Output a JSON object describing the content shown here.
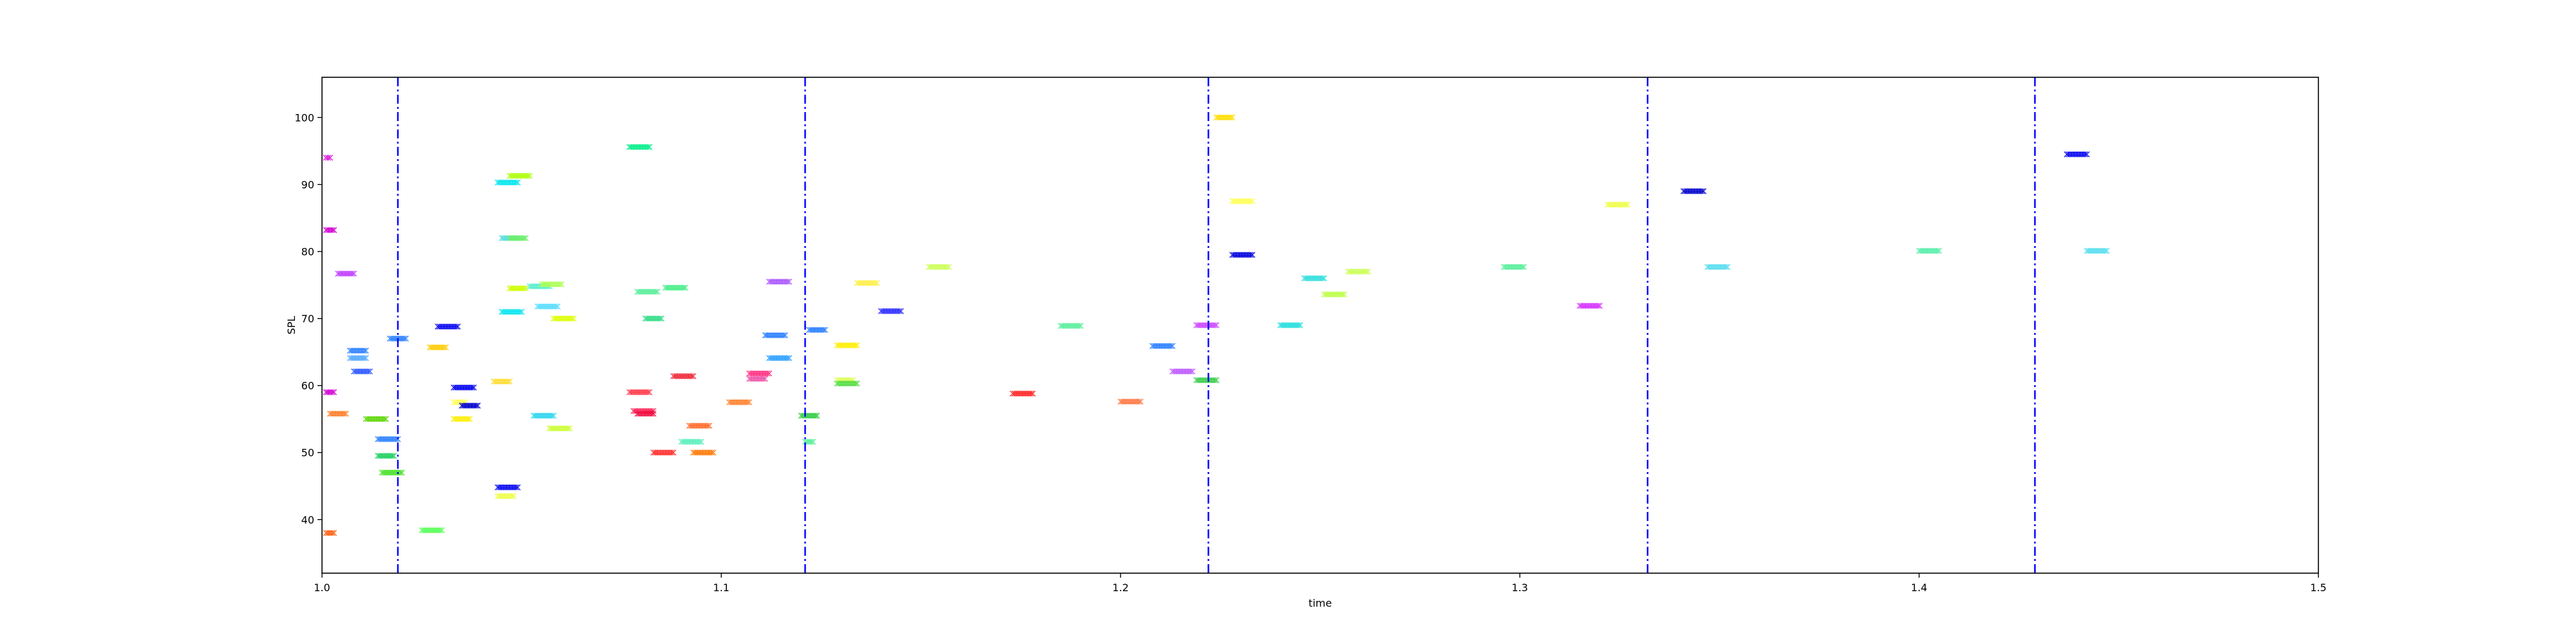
{
  "chart_data": {
    "type": "scatter",
    "xlabel": "time",
    "ylabel": "SPL",
    "xlim": [
      1.0,
      1.5
    ],
    "ylim": [
      32,
      106
    ],
    "xticks": [
      "1.0",
      "1.1",
      "1.2",
      "1.3",
      "1.4",
      "1.5"
    ],
    "yticks": [
      "40",
      "50",
      "60",
      "70",
      "80",
      "90",
      "100"
    ],
    "grid": false,
    "marker": "x",
    "vlines": {
      "x": [
        1.019,
        1.121,
        1.222,
        1.332,
        1.429
      ],
      "color": "#0000ff",
      "style": "dash-dot"
    },
    "points": [
      {
        "x": 1.001,
        "y": 94.0,
        "w": 0.001,
        "color": "#d400d4"
      },
      {
        "x": 1.001,
        "y": 83.2,
        "w": 0.002,
        "color": "#d400d4"
      },
      {
        "x": 1.004,
        "y": 76.7,
        "w": 0.004,
        "color": "#c040ff"
      },
      {
        "x": 1.001,
        "y": 59.0,
        "w": 0.002,
        "color": "#d400d4"
      },
      {
        "x": 1.002,
        "y": 55.8,
        "w": 0.004,
        "color": "#ff7f2a"
      },
      {
        "x": 1.001,
        "y": 38.0,
        "w": 0.002,
        "color": "#ff6010"
      },
      {
        "x": 1.007,
        "y": 65.2,
        "w": 0.004,
        "color": "#2a7fff"
      },
      {
        "x": 1.007,
        "y": 64.1,
        "w": 0.004,
        "color": "#55aaff"
      },
      {
        "x": 1.008,
        "y": 62.1,
        "w": 0.004,
        "color": "#2a55ff"
      },
      {
        "x": 1.011,
        "y": 55.0,
        "w": 0.005,
        "color": "#5ad500"
      },
      {
        "x": 1.014,
        "y": 52.0,
        "w": 0.005,
        "color": "#2a7fff"
      },
      {
        "x": 1.014,
        "y": 49.5,
        "w": 0.004,
        "color": "#1fd060"
      },
      {
        "x": 1.015,
        "y": 47.0,
        "w": 0.005,
        "color": "#40e020"
      },
      {
        "x": 1.017,
        "y": 67.0,
        "w": 0.004,
        "color": "#2a7fff"
      },
      {
        "x": 1.025,
        "y": 38.4,
        "w": 0.005,
        "color": "#55ff55"
      },
      {
        "x": 1.027,
        "y": 65.7,
        "w": 0.004,
        "color": "#ffcc00"
      },
      {
        "x": 1.029,
        "y": 68.8,
        "w": 0.005,
        "color": "#0000ee"
      },
      {
        "x": 1.033,
        "y": 59.7,
        "w": 0.005,
        "color": "#0000ee"
      },
      {
        "x": 1.033,
        "y": 57.5,
        "w": 0.003,
        "color": "#ffff55"
      },
      {
        "x": 1.033,
        "y": 55.0,
        "w": 0.004,
        "color": "#ffee00"
      },
      {
        "x": 1.035,
        "y": 57.0,
        "w": 0.004,
        "color": "#0000cc"
      },
      {
        "x": 1.043,
        "y": 60.6,
        "w": 0.004,
        "color": "#ffdd33"
      },
      {
        "x": 1.044,
        "y": 44.8,
        "w": 0.005,
        "color": "#0000ee"
      },
      {
        "x": 1.044,
        "y": 43.5,
        "w": 0.004,
        "color": "#eeff44"
      },
      {
        "x": 1.044,
        "y": 90.3,
        "w": 0.005,
        "color": "#00e5ee"
      },
      {
        "x": 1.047,
        "y": 91.3,
        "w": 0.005,
        "color": "#aaff00"
      },
      {
        "x": 1.045,
        "y": 82.0,
        "w": 0.004,
        "color": "#55dddd"
      },
      {
        "x": 1.047,
        "y": 82.0,
        "w": 0.004,
        "color": "#66ee66"
      },
      {
        "x": 1.045,
        "y": 71.0,
        "w": 0.005,
        "color": "#00e5ee"
      },
      {
        "x": 1.047,
        "y": 74.5,
        "w": 0.004,
        "color": "#ccff00"
      },
      {
        "x": 1.052,
        "y": 74.8,
        "w": 0.005,
        "color": "#55eecc"
      },
      {
        "x": 1.055,
        "y": 75.1,
        "w": 0.005,
        "color": "#aaff55"
      },
      {
        "x": 1.054,
        "y": 71.8,
        "w": 0.005,
        "color": "#55ddff"
      },
      {
        "x": 1.058,
        "y": 70.0,
        "w": 0.005,
        "color": "#ddff00"
      },
      {
        "x": 1.053,
        "y": 55.5,
        "w": 0.005,
        "color": "#2ad5ee"
      },
      {
        "x": 1.057,
        "y": 53.6,
        "w": 0.005,
        "color": "#ccff33"
      },
      {
        "x": 1.077,
        "y": 95.6,
        "w": 0.005,
        "color": "#00ee88"
      },
      {
        "x": 1.079,
        "y": 74.0,
        "w": 0.005,
        "color": "#55ee99"
      },
      {
        "x": 1.081,
        "y": 70.0,
        "w": 0.004,
        "color": "#33dd88"
      },
      {
        "x": 1.086,
        "y": 74.6,
        "w": 0.005,
        "color": "#44ee88"
      },
      {
        "x": 1.077,
        "y": 59.0,
        "w": 0.005,
        "color": "#ff3344"
      },
      {
        "x": 1.078,
        "y": 56.2,
        "w": 0.005,
        "color": "#ff2255"
      },
      {
        "x": 1.079,
        "y": 55.8,
        "w": 0.004,
        "color": "#ee1144"
      },
      {
        "x": 1.083,
        "y": 50.0,
        "w": 0.005,
        "color": "#ff2a2a"
      },
      {
        "x": 1.088,
        "y": 61.4,
        "w": 0.005,
        "color": "#ee2233"
      },
      {
        "x": 1.092,
        "y": 54.0,
        "w": 0.005,
        "color": "#ff6622"
      },
      {
        "x": 1.09,
        "y": 51.6,
        "w": 0.005,
        "color": "#55eebb"
      },
      {
        "x": 1.093,
        "y": 50.0,
        "w": 0.005,
        "color": "#ff7700"
      },
      {
        "x": 1.102,
        "y": 57.5,
        "w": 0.005,
        "color": "#ff7f2a"
      },
      {
        "x": 1.107,
        "y": 61.8,
        "w": 0.005,
        "color": "#ff2a7f"
      },
      {
        "x": 1.107,
        "y": 61.0,
        "w": 0.004,
        "color": "#ee55aa"
      },
      {
        "x": 1.112,
        "y": 75.5,
        "w": 0.005,
        "color": "#aa55ff"
      },
      {
        "x": 1.111,
        "y": 67.5,
        "w": 0.005,
        "color": "#2a7fff"
      },
      {
        "x": 1.112,
        "y": 64.1,
        "w": 0.005,
        "color": "#2a9fff"
      },
      {
        "x": 1.12,
        "y": 55.5,
        "w": 0.004,
        "color": "#33cc44"
      },
      {
        "x": 1.121,
        "y": 51.6,
        "w": 0.002,
        "color": "#55ee99"
      },
      {
        "x": 1.122,
        "y": 68.3,
        "w": 0.004,
        "color": "#2a7fff"
      },
      {
        "x": 1.129,
        "y": 66.0,
        "w": 0.005,
        "color": "#ffee00"
      },
      {
        "x": 1.129,
        "y": 60.8,
        "w": 0.004,
        "color": "#ddff55"
      },
      {
        "x": 1.129,
        "y": 60.3,
        "w": 0.005,
        "color": "#55dd44"
      },
      {
        "x": 1.134,
        "y": 75.3,
        "w": 0.005,
        "color": "#ffee44"
      },
      {
        "x": 1.14,
        "y": 71.1,
        "w": 0.005,
        "color": "#2a2aff"
      },
      {
        "x": 1.152,
        "y": 77.7,
        "w": 0.005,
        "color": "#ccff55"
      },
      {
        "x": 1.173,
        "y": 58.8,
        "w": 0.005,
        "color": "#ff2222"
      },
      {
        "x": 1.185,
        "y": 68.9,
        "w": 0.005,
        "color": "#55ee99"
      },
      {
        "x": 1.2,
        "y": 57.6,
        "w": 0.005,
        "color": "#ff7744"
      },
      {
        "x": 1.208,
        "y": 65.9,
        "w": 0.005,
        "color": "#2a7fff"
      },
      {
        "x": 1.213,
        "y": 62.1,
        "w": 0.005,
        "color": "#bb55ff"
      },
      {
        "x": 1.219,
        "y": 69.0,
        "w": 0.005,
        "color": "#cc44ff"
      },
      {
        "x": 1.219,
        "y": 60.8,
        "w": 0.005,
        "color": "#33cc44"
      },
      {
        "x": 1.224,
        "y": 100.0,
        "w": 0.004,
        "color": "#ffdd00"
      },
      {
        "x": 1.228,
        "y": 87.5,
        "w": 0.005,
        "color": "#ffff55"
      },
      {
        "x": 1.228,
        "y": 79.5,
        "w": 0.005,
        "color": "#0000dd"
      },
      {
        "x": 1.24,
        "y": 69.0,
        "w": 0.005,
        "color": "#22dddd"
      },
      {
        "x": 1.246,
        "y": 76.0,
        "w": 0.005,
        "color": "#2adddd"
      },
      {
        "x": 1.251,
        "y": 73.6,
        "w": 0.005,
        "color": "#bbff44"
      },
      {
        "x": 1.257,
        "y": 77.0,
        "w": 0.005,
        "color": "#ccff55"
      },
      {
        "x": 1.296,
        "y": 77.7,
        "w": 0.005,
        "color": "#55ee99"
      },
      {
        "x": 1.315,
        "y": 71.9,
        "w": 0.005,
        "color": "#d42aff"
      },
      {
        "x": 1.322,
        "y": 87.0,
        "w": 0.005,
        "color": "#eeff44"
      },
      {
        "x": 1.341,
        "y": 89.0,
        "w": 0.005,
        "color": "#0000cc"
      },
      {
        "x": 1.347,
        "y": 77.7,
        "w": 0.005,
        "color": "#55ddee"
      },
      {
        "x": 1.4,
        "y": 80.1,
        "w": 0.005,
        "color": "#55eeaa"
      },
      {
        "x": 1.437,
        "y": 94.5,
        "w": 0.005,
        "color": "#0000ee"
      },
      {
        "x": 1.442,
        "y": 80.1,
        "w": 0.005,
        "color": "#55ddee"
      }
    ]
  }
}
